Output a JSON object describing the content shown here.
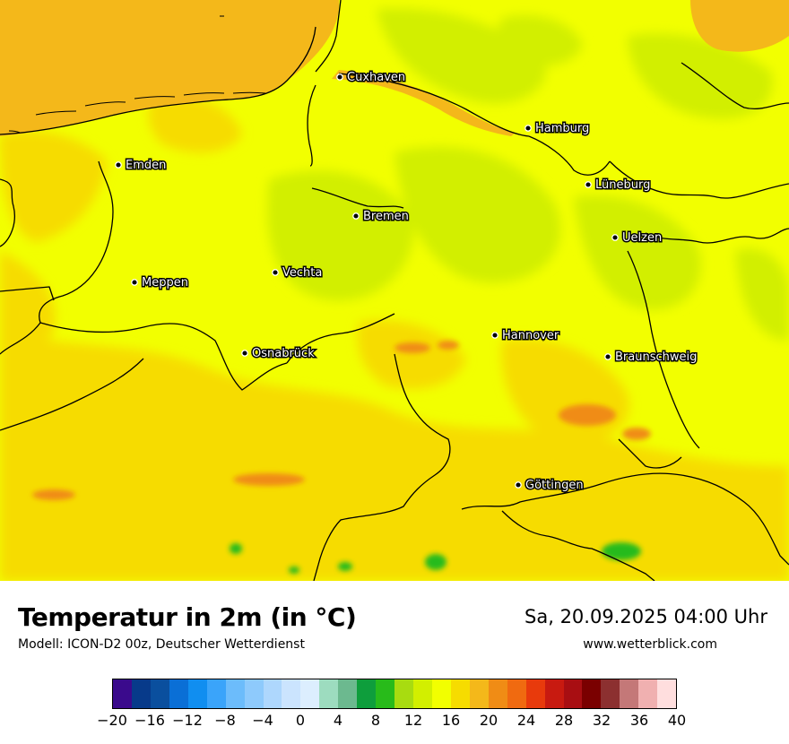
{
  "title": "Temperatur in 2m (in °C)",
  "subtitle": "Modell: ICON-D2 00z, Deutscher Wetterdienst",
  "datetime": "Sa, 20.09.2025 04:00 Uhr",
  "website": "www.wetterblick.com",
  "cities": [
    {
      "name": "Cuxhaven"
    },
    {
      "name": "Hamburg"
    },
    {
      "name": "Emden"
    },
    {
      "name": "Lüneburg"
    },
    {
      "name": "Bremen"
    },
    {
      "name": "Uelzen"
    },
    {
      "name": "Vechta"
    },
    {
      "name": "Meppen"
    },
    {
      "name": "Hannover"
    },
    {
      "name": "Osnabrück"
    },
    {
      "name": "Braunschweig"
    },
    {
      "name": "Göttingen"
    }
  ],
  "colorbar": {
    "unit": "°C",
    "min": -20,
    "max": 40,
    "step": 2,
    "tick_labels": [
      "−20",
      "−16",
      "−12",
      "−8",
      "−4",
      "0",
      "4",
      "8",
      "12",
      "16",
      "20",
      "24",
      "28",
      "32",
      "36",
      "40"
    ],
    "colors": [
      "#3a0a8c",
      "#073a8a",
      "#0a4f9e",
      "#0a6fd6",
      "#108ef0",
      "#3aa4fa",
      "#6cbcfb",
      "#8ecafc",
      "#aed7fd",
      "#cbe4fe",
      "#dceefe",
      "#9ddcbf",
      "#6cb98f",
      "#0e9e3c",
      "#28bb1a",
      "#a8dc10",
      "#d2ef00",
      "#f2ff00",
      "#f6dc00",
      "#f4b81a",
      "#f08c15",
      "#f06a10",
      "#e83a0c",
      "#c81a10",
      "#a80e12",
      "#7a0000",
      "#8c3030",
      "#c47878",
      "#f0b0b0",
      "#ffdede"
    ]
  },
  "palette": {
    "sea": "#f4b81a",
    "land_base": "#f2ff00",
    "warm_land": "#f6dc00",
    "cool_land": "#d2ef00",
    "hot_spot": "#f08c15",
    "cold_spot": "#28bb1a"
  }
}
